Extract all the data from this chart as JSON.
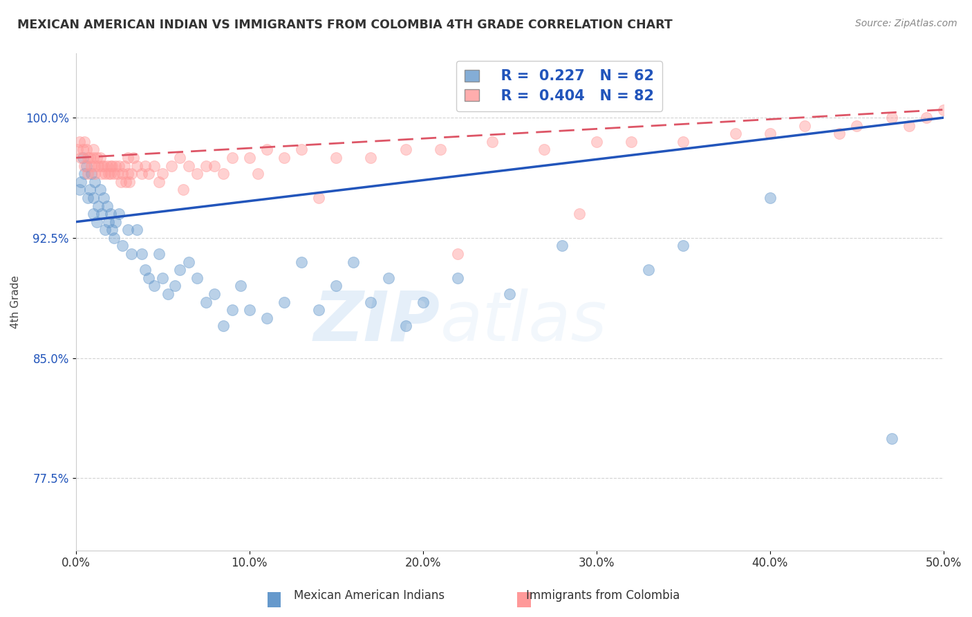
{
  "title": "MEXICAN AMERICAN INDIAN VS IMMIGRANTS FROM COLOMBIA 4TH GRADE CORRELATION CHART",
  "source": "Source: ZipAtlas.com",
  "ylabel": "4th Grade",
  "xlim": [
    0.0,
    50.0
  ],
  "ylim": [
    73.0,
    104.0
  ],
  "yticks": [
    77.5,
    85.0,
    92.5,
    100.0
  ],
  "xticks": [
    0.0,
    10.0,
    20.0,
    30.0,
    40.0,
    50.0
  ],
  "blue_R": 0.227,
  "blue_N": 62,
  "pink_R": 0.404,
  "pink_N": 82,
  "blue_color": "#6699CC",
  "pink_color": "#FF9999",
  "blue_line_color": "#2255BB",
  "pink_line_color": "#DD5566",
  "watermark_zip": "ZIP",
  "watermark_atlas": "atlas",
  "blue_scatter_x": [
    0.2,
    0.3,
    0.4,
    0.5,
    0.6,
    0.7,
    0.8,
    0.9,
    1.0,
    1.0,
    1.1,
    1.2,
    1.3,
    1.4,
    1.5,
    1.6,
    1.7,
    1.8,
    1.9,
    2.0,
    2.1,
    2.2,
    2.3,
    2.5,
    2.7,
    3.0,
    3.2,
    3.5,
    3.8,
    4.0,
    4.2,
    4.5,
    4.8,
    5.0,
    5.3,
    5.7,
    6.0,
    6.5,
    7.0,
    7.5,
    8.0,
    8.5,
    9.0,
    9.5,
    10.0,
    11.0,
    12.0,
    13.0,
    14.0,
    15.0,
    16.0,
    17.0,
    18.0,
    19.0,
    20.0,
    22.0,
    25.0,
    28.0,
    33.0,
    35.0,
    40.0,
    47.0
  ],
  "blue_scatter_y": [
    95.5,
    96.0,
    97.5,
    96.5,
    97.0,
    95.0,
    95.5,
    96.5,
    95.0,
    94.0,
    96.0,
    93.5,
    94.5,
    95.5,
    94.0,
    95.0,
    93.0,
    94.5,
    93.5,
    94.0,
    93.0,
    92.5,
    93.5,
    94.0,
    92.0,
    93.0,
    91.5,
    93.0,
    91.5,
    90.5,
    90.0,
    89.5,
    91.5,
    90.0,
    89.0,
    89.5,
    90.5,
    91.0,
    90.0,
    88.5,
    89.0,
    87.0,
    88.0,
    89.5,
    88.0,
    87.5,
    88.5,
    91.0,
    88.0,
    89.5,
    91.0,
    88.5,
    90.0,
    87.0,
    88.5,
    90.0,
    89.0,
    92.0,
    90.5,
    92.0,
    95.0,
    80.0
  ],
  "pink_scatter_x": [
    0.1,
    0.2,
    0.3,
    0.4,
    0.5,
    0.5,
    0.6,
    0.7,
    0.7,
    0.8,
    0.9,
    1.0,
    1.0,
    1.1,
    1.1,
    1.2,
    1.3,
    1.4,
    1.5,
    1.5,
    1.6,
    1.7,
    1.8,
    1.9,
    2.0,
    2.0,
    2.1,
    2.2,
    2.3,
    2.4,
    2.5,
    2.6,
    2.7,
    2.8,
    3.0,
    3.0,
    3.1,
    3.2,
    3.5,
    3.8,
    4.0,
    4.2,
    4.5,
    5.0,
    5.5,
    6.0,
    6.5,
    7.0,
    7.5,
    8.0,
    9.0,
    10.0,
    11.0,
    12.0,
    13.0,
    15.0,
    17.0,
    19.0,
    21.0,
    24.0,
    27.0,
    30.0,
    32.0,
    35.0,
    38.0,
    40.0,
    42.0,
    44.0,
    45.0,
    47.0,
    48.0,
    49.0,
    50.0,
    3.3,
    2.9,
    4.8,
    6.2,
    8.5,
    10.5,
    14.0,
    22.0,
    29.0
  ],
  "pink_scatter_y": [
    98.0,
    98.5,
    97.5,
    98.0,
    98.5,
    97.0,
    98.0,
    97.5,
    96.5,
    97.5,
    97.0,
    98.0,
    97.5,
    97.0,
    96.5,
    97.5,
    97.0,
    97.5,
    97.0,
    96.5,
    97.0,
    96.5,
    97.0,
    96.5,
    97.0,
    96.5,
    97.0,
    96.5,
    97.0,
    96.5,
    97.0,
    96.0,
    96.5,
    97.0,
    97.5,
    96.5,
    96.0,
    96.5,
    97.0,
    96.5,
    97.0,
    96.5,
    97.0,
    96.5,
    97.0,
    97.5,
    97.0,
    96.5,
    97.0,
    97.0,
    97.5,
    97.5,
    98.0,
    97.5,
    98.0,
    97.5,
    97.5,
    98.0,
    98.0,
    98.5,
    98.0,
    98.5,
    98.5,
    98.5,
    99.0,
    99.0,
    99.5,
    99.0,
    99.5,
    100.0,
    99.5,
    100.0,
    100.5,
    97.5,
    96.0,
    96.0,
    95.5,
    96.5,
    96.5,
    95.0,
    91.5,
    94.0
  ]
}
